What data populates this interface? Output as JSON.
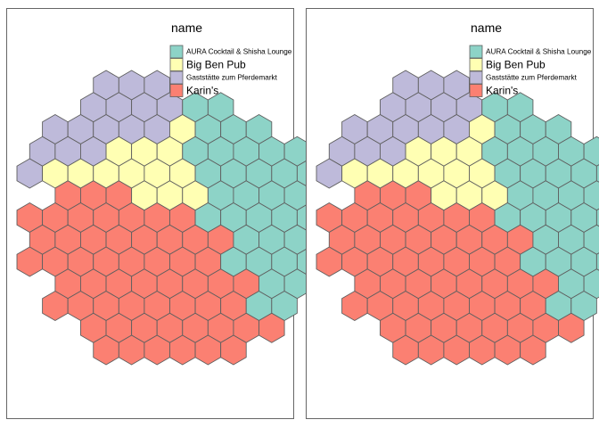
{
  "chart_data": {
    "type": "hexbin-map",
    "panels": 2,
    "legend": {
      "title": "name",
      "placement": "top-right",
      "entries": [
        {
          "label": "AURA Cocktail & Shisha Lounge",
          "color": "#8DD3C7"
        },
        {
          "label": "Big Ben Pub",
          "color": "#FFFFB3"
        },
        {
          "label": "Gaststätte zum Pferdemarkt",
          "color": "#BEBADA"
        },
        {
          "label": "Karin's",
          "color": "#FB8072"
        }
      ]
    },
    "hex_rows": [
      {
        "row": 0,
        "cols": [
          3,
          4,
          5
        ]
      },
      {
        "row": 1,
        "cols": [
          2,
          3,
          4,
          5,
          6,
          7
        ]
      },
      {
        "row": 2,
        "cols": [
          1,
          2,
          3,
          4,
          5,
          6,
          7,
          8,
          9
        ]
      },
      {
        "row": 3,
        "cols": [
          0,
          1,
          2,
          3,
          4,
          5,
          6,
          7,
          8,
          9,
          10
        ]
      },
      {
        "row": 4,
        "cols": [
          0,
          1,
          2,
          3,
          4,
          5,
          6,
          7,
          8,
          9,
          10,
          11
        ]
      },
      {
        "row": 5,
        "cols": [
          1,
          2,
          3,
          4,
          5,
          6,
          7,
          8,
          9,
          10,
          11
        ]
      },
      {
        "row": 6,
        "cols": [
          0,
          1,
          2,
          3,
          4,
          5,
          6,
          7,
          8,
          9,
          10,
          11
        ]
      },
      {
        "row": 7,
        "cols": [
          0,
          1,
          2,
          3,
          4,
          5,
          6,
          7,
          8,
          9,
          10
        ]
      },
      {
        "row": 8,
        "cols": [
          0,
          1,
          2,
          3,
          4,
          5,
          6,
          7,
          8,
          9,
          10,
          11
        ]
      },
      {
        "row": 9,
        "cols": [
          1,
          2,
          3,
          4,
          5,
          6,
          7,
          8,
          9,
          10
        ]
      },
      {
        "row": 10,
        "cols": [
          1,
          2,
          3,
          4,
          5,
          6,
          7,
          8,
          9,
          10
        ]
      },
      {
        "row": 11,
        "cols": [
          2,
          3,
          4,
          5,
          6,
          7,
          8,
          9
        ]
      },
      {
        "row": 12,
        "cols": [
          3,
          4,
          5,
          6,
          7,
          8
        ]
      }
    ],
    "groups_by_row": [
      [
        "Gaststätte zum Pferdemarkt",
        "Gaststätte zum Pferdemarkt",
        "Gaststätte zum Pferdemarkt"
      ],
      [
        "Gaststätte zum Pferdemarkt",
        "Gaststätte zum Pferdemarkt",
        "Gaststätte zum Pferdemarkt",
        "Gaststätte zum Pferdemarkt",
        "AURA Cocktail & Shisha Lounge",
        "AURA Cocktail & Shisha Lounge"
      ],
      [
        "Gaststätte zum Pferdemarkt",
        "Gaststätte zum Pferdemarkt",
        "Gaststätte zum Pferdemarkt",
        "Gaststätte zum Pferdemarkt",
        "Gaststätte zum Pferdemarkt",
        "Big Ben Pub",
        "AURA Cocktail & Shisha Lounge",
        "AURA Cocktail & Shisha Lounge",
        "AURA Cocktail & Shisha Lounge"
      ],
      [
        "Gaststätte zum Pferdemarkt",
        "Gaststätte zum Pferdemarkt",
        "Gaststätte zum Pferdemarkt",
        "Big Ben Pub",
        "Big Ben Pub",
        "Big Ben Pub",
        "AURA Cocktail & Shisha Lounge",
        "AURA Cocktail & Shisha Lounge",
        "AURA Cocktail & Shisha Lounge",
        "AURA Cocktail & Shisha Lounge",
        "AURA Cocktail & Shisha Lounge"
      ],
      [
        "Gaststätte zum Pferdemarkt",
        "Big Ben Pub",
        "Big Ben Pub",
        "Big Ben Pub",
        "Big Ben Pub",
        "Big Ben Pub",
        "Big Ben Pub",
        "AURA Cocktail & Shisha Lounge",
        "AURA Cocktail & Shisha Lounge",
        "AURA Cocktail & Shisha Lounge",
        "AURA Cocktail & Shisha Lounge",
        "AURA Cocktail & Shisha Lounge"
      ],
      [
        "Karin's",
        "Karin's",
        "Karin's",
        "Big Ben Pub",
        "Big Ben Pub",
        "Big Ben Pub",
        "AURA Cocktail & Shisha Lounge",
        "AURA Cocktail & Shisha Lounge",
        "AURA Cocktail & Shisha Lounge",
        "AURA Cocktail & Shisha Lounge",
        "AURA Cocktail & Shisha Lounge"
      ],
      [
        "Karin's",
        "Karin's",
        "Karin's",
        "Karin's",
        "Karin's",
        "Karin's",
        "Karin's",
        "AURA Cocktail & Shisha Lounge",
        "AURA Cocktail & Shisha Lounge",
        "AURA Cocktail & Shisha Lounge",
        "AURA Cocktail & Shisha Lounge",
        "AURA Cocktail & Shisha Lounge"
      ],
      [
        "Karin's",
        "Karin's",
        "Karin's",
        "Karin's",
        "Karin's",
        "Karin's",
        "Karin's",
        "Karin's",
        "AURA Cocktail & Shisha Lounge",
        "AURA Cocktail & Shisha Lounge",
        "AURA Cocktail & Shisha Lounge"
      ],
      [
        "Karin's",
        "Karin's",
        "Karin's",
        "Karin's",
        "Karin's",
        "Karin's",
        "Karin's",
        "Karin's",
        "AURA Cocktail & Shisha Lounge",
        "AURA Cocktail & Shisha Lounge",
        "AURA Cocktail & Shisha Lounge",
        "AURA Cocktail & Shisha Lounge"
      ],
      [
        "Karin's",
        "Karin's",
        "Karin's",
        "Karin's",
        "Karin's",
        "Karin's",
        "Karin's",
        "Karin's",
        "AURA Cocktail & Shisha Lounge",
        "AURA Cocktail & Shisha Lounge"
      ],
      [
        "Karin's",
        "Karin's",
        "Karin's",
        "Karin's",
        "Karin's",
        "Karin's",
        "Karin's",
        "Karin's",
        "AURA Cocktail & Shisha Lounge",
        "AURA Cocktail & Shisha Lounge"
      ],
      [
        "Karin's",
        "Karin's",
        "Karin's",
        "Karin's",
        "Karin's",
        "Karin's",
        "Karin's",
        "Karin's"
      ],
      [
        "Karin's",
        "Karin's",
        "Karin's",
        "Karin's",
        "Karin's",
        "Karin's"
      ]
    ]
  }
}
